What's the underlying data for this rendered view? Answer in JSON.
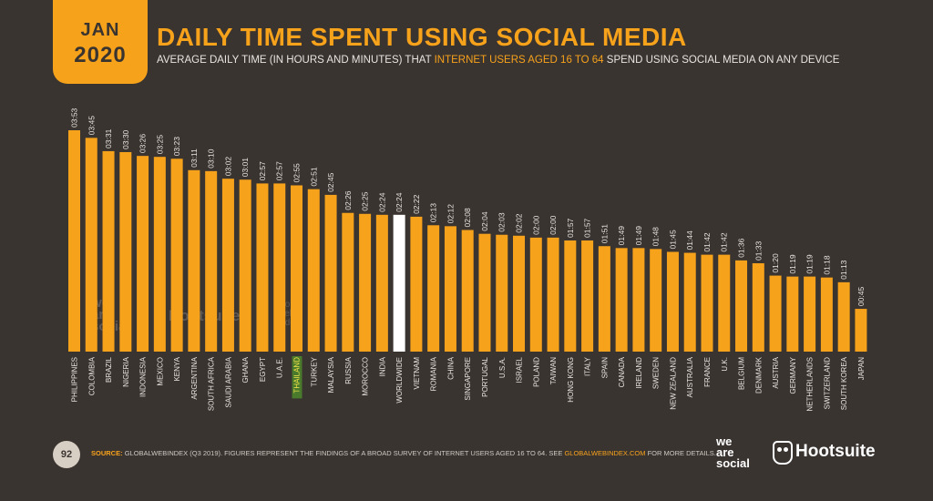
{
  "badge": {
    "month": "JAN",
    "year": "2020"
  },
  "title": "DAILY TIME SPENT USING SOCIAL MEDIA",
  "subtitle": {
    "before": "AVERAGE DAILY TIME (IN HOURS AND MINUTES) THAT ",
    "highlight": "INTERNET USERS AGED 16 TO 64",
    "after": " SPEND USING SOCIAL MEDIA ON ANY DEVICE"
  },
  "footer": {
    "page_number": "92",
    "source_label": "SOURCE:",
    "source_text": "GLOBALWEBINDEX (Q3 2019). FIGURES REPRESENT THE FINDINGS OF A BROAD SURVEY OF INTERNET USERS AGED 16 TO 64. SEE ",
    "source_link": "GLOBALWEBINDEX.COM",
    "source_after": " FOR MORE DETAILS."
  },
  "logos": {
    "was_line1": "we",
    "was_line2": "are",
    "was_line3": "social",
    "hootsuite": "Hootsuite",
    "gwi_line1": "global",
    "gwi_line2": "web",
    "gwi_line3": "index"
  },
  "colors": {
    "background": "#3a3431",
    "bar": "#f7a21b",
    "highlight_bar": "#ffffff",
    "accent": "#f7a21b",
    "text": "#e8e4de",
    "highlight_label_bg": "#4a7a2c"
  },
  "chart_data": {
    "type": "bar",
    "unit": "hours:minutes",
    "highlight_category": "WORLDWIDE",
    "highlight_label_category": "THAILAND",
    "categories": [
      "PHILIPPINES",
      "COLOMBIA",
      "BRAZIL",
      "NIGERIA",
      "INDONESIA",
      "MEXICO",
      "KENYA",
      "ARGENTINA",
      "SOUTH AFRICA",
      "SAUDI ARABIA",
      "GHANA",
      "EGYPT",
      "U.A.E.",
      "THAILAND",
      "TURKEY",
      "MALAYSIA",
      "RUSSIA",
      "MOROCCO",
      "INDIA",
      "WORLDWIDE",
      "VIETNAM",
      "ROMANIA",
      "CHINA",
      "SINGAPORE",
      "PORTUGAL",
      "U.S.A.",
      "ISRAEL",
      "POLAND",
      "TAIWAN",
      "HONG KONG",
      "ITALY",
      "SPAIN",
      "CANADA",
      "IRELAND",
      "SWEDEN",
      "NEW ZEALAND",
      "AUSTRALIA",
      "FRANCE",
      "U.K.",
      "BELGIUM",
      "DENMARK",
      "AUSTRIA",
      "GERMANY",
      "NETHERLANDS",
      "SWITZERLAND",
      "SOUTH KOREA",
      "JAPAN"
    ],
    "labels": [
      "03:53",
      "03:45",
      "03:31",
      "03:30",
      "03:26",
      "03:25",
      "03:23",
      "03:11",
      "03:10",
      "03:02",
      "03:01",
      "02:57",
      "02:57",
      "02:55",
      "02:51",
      "02:45",
      "02:26",
      "02:25",
      "02:24",
      "02:24",
      "02:22",
      "02:13",
      "02:12",
      "02:08",
      "02:04",
      "02:03",
      "02:02",
      "02:00",
      "02:00",
      "01:57",
      "01:57",
      "01:51",
      "01:49",
      "01:49",
      "01:48",
      "01:45",
      "01:44",
      "01:42",
      "01:42",
      "01:36",
      "01:33",
      "01:20",
      "01:19",
      "01:19",
      "01:18",
      "01:13",
      "00:45"
    ],
    "values_minutes": [
      233,
      225,
      211,
      210,
      206,
      205,
      203,
      191,
      190,
      182,
      181,
      177,
      177,
      175,
      171,
      165,
      146,
      145,
      144,
      144,
      142,
      133,
      132,
      128,
      124,
      123,
      122,
      120,
      120,
      117,
      117,
      111,
      109,
      109,
      108,
      105,
      104,
      102,
      102,
      96,
      93,
      80,
      79,
      79,
      78,
      73,
      45
    ]
  }
}
